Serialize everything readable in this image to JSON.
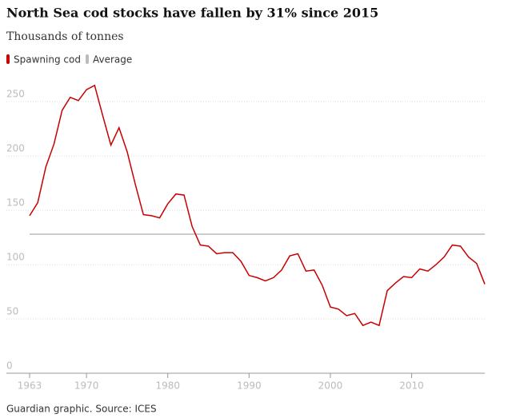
{
  "chart_data": {
    "type": "line",
    "title": "North Sea cod stocks have fallen by 31% since 2015",
    "subtitle": "Thousands of tonnes",
    "source": "Guardian graphic. Source: ICES",
    "x": [
      1963,
      1964,
      1965,
      1966,
      1967,
      1968,
      1969,
      1970,
      1971,
      1972,
      1973,
      1974,
      1975,
      1976,
      1977,
      1978,
      1979,
      1980,
      1981,
      1982,
      1983,
      1984,
      1985,
      1986,
      1987,
      1988,
      1989,
      1990,
      1991,
      1992,
      1993,
      1994,
      1995,
      1996,
      1997,
      1998,
      1999,
      2000,
      2001,
      2002,
      2003,
      2004,
      2005,
      2006,
      2007,
      2008,
      2009,
      2010,
      2011,
      2012,
      2013,
      2014,
      2015,
      2016,
      2017,
      2018,
      2019
    ],
    "series": [
      {
        "name": "Spawning cod",
        "color": "#c70000",
        "values": [
          145,
          157,
          190,
          211,
          242,
          254,
          251,
          261,
          265,
          237,
          210,
          226,
          204,
          174,
          146,
          145,
          143,
          156,
          165,
          164,
          135,
          118,
          117,
          110,
          111,
          111,
          103,
          90,
          88,
          85,
          88,
          95,
          108,
          110,
          94,
          95,
          81,
          61,
          59,
          53,
          55,
          44,
          47,
          44,
          76,
          83,
          89,
          88,
          96,
          94,
          100,
          107,
          118,
          117,
          107,
          101,
          82
        ]
      }
    ],
    "average": {
      "name": "Average",
      "color": "#bbbbbb",
      "value": 128
    },
    "xlim": [
      1963,
      2019
    ],
    "xticks": [
      1963,
      1970,
      1980,
      1990,
      2000,
      2010
    ],
    "ylim": [
      0,
      270
    ],
    "yticks": [
      0,
      50,
      100,
      150,
      200,
      250
    ],
    "grid": true
  }
}
